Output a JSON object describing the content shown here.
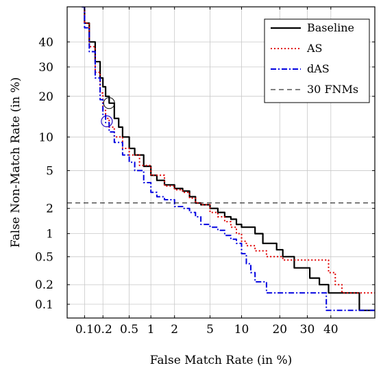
{
  "chart_data": {
    "type": "line",
    "xlabel": "False Match Rate (in %)",
    "ylabel": "False Non-Match Rate (in %)",
    "xscale": "probit",
    "yscale": "probit",
    "xlim": [
      0.05,
      60
    ],
    "ylim": [
      0.06,
      55
    ],
    "x_ticks": [
      0.1,
      0.2,
      0.5,
      1,
      2,
      5,
      10,
      20,
      30,
      40
    ],
    "x_tick_labels": [
      "0.1",
      "0.2",
      "0.5",
      "1",
      "2",
      "5",
      "10",
      "20",
      "30",
      "40"
    ],
    "y_ticks": [
      0.1,
      0.2,
      0.5,
      1,
      2,
      5,
      10,
      20,
      30,
      40
    ],
    "y_tick_labels": [
      "0.1",
      "0.2",
      "0.5",
      "1",
      "2",
      "5",
      "10",
      "20",
      "30",
      "40"
    ],
    "grid": true,
    "legend_position": "top-right",
    "series": [
      {
        "name": "Baseline",
        "color": "#000000",
        "style": "solid",
        "points": [
          [
            0.09,
            55
          ],
          [
            0.1,
            48
          ],
          [
            0.12,
            40
          ],
          [
            0.15,
            32
          ],
          [
            0.18,
            26
          ],
          [
            0.2,
            23
          ],
          [
            0.22,
            20
          ],
          [
            0.25,
            18
          ],
          [
            0.3,
            14
          ],
          [
            0.35,
            12
          ],
          [
            0.4,
            10
          ],
          [
            0.5,
            8
          ],
          [
            0.6,
            7
          ],
          [
            0.8,
            5.5
          ],
          [
            1,
            4.5
          ],
          [
            1.2,
            4
          ],
          [
            1.5,
            3.6
          ],
          [
            2,
            3.3
          ],
          [
            2.5,
            3.1
          ],
          [
            3,
            2.7
          ],
          [
            3.5,
            2.3
          ],
          [
            4,
            2.2
          ],
          [
            5,
            2
          ],
          [
            6,
            1.8
          ],
          [
            7,
            1.6
          ],
          [
            8,
            1.5
          ],
          [
            9,
            1.3
          ],
          [
            10,
            1.2
          ],
          [
            12,
            1.2
          ],
          [
            13,
            1.0
          ],
          [
            14,
            1.0
          ],
          [
            15,
            0.75
          ],
          [
            18,
            0.75
          ],
          [
            19,
            0.62
          ],
          [
            20,
            0.62
          ],
          [
            21,
            0.5
          ],
          [
            24,
            0.5
          ],
          [
            25,
            0.35
          ],
          [
            30,
            0.35
          ],
          [
            31,
            0.25
          ],
          [
            35,
            0.2
          ],
          [
            38,
            0.2
          ],
          [
            39,
            0.15
          ],
          [
            50,
            0.15
          ],
          [
            53,
            0.08
          ],
          [
            60,
            0.08
          ]
        ]
      },
      {
        "name": "AS",
        "color": "#e00000",
        "style": "dotted",
        "points": [
          [
            0.09,
            55
          ],
          [
            0.1,
            48
          ],
          [
            0.12,
            38
          ],
          [
            0.15,
            28
          ],
          [
            0.18,
            21
          ],
          [
            0.2,
            16
          ],
          [
            0.22,
            14
          ],
          [
            0.25,
            12
          ],
          [
            0.3,
            10
          ],
          [
            0.4,
            8
          ],
          [
            0.5,
            7
          ],
          [
            0.7,
            5.6
          ],
          [
            1,
            4.5
          ],
          [
            1.5,
            3.5
          ],
          [
            2,
            3.2
          ],
          [
            2.5,
            3
          ],
          [
            3,
            2.6
          ],
          [
            3.5,
            2.3
          ],
          [
            4,
            2.2
          ],
          [
            5,
            1.8
          ],
          [
            6,
            1.6
          ],
          [
            7,
            1.4
          ],
          [
            8,
            1.2
          ],
          [
            9,
            1.0
          ],
          [
            10,
            0.8
          ],
          [
            11,
            0.7
          ],
          [
            13,
            0.6
          ],
          [
            15,
            0.6
          ],
          [
            16,
            0.5
          ],
          [
            20,
            0.5
          ],
          [
            21,
            0.45
          ],
          [
            38,
            0.45
          ],
          [
            39,
            0.3
          ],
          [
            42,
            0.2
          ],
          [
            45,
            0.15
          ],
          [
            60,
            0.15
          ]
        ]
      },
      {
        "name": "dAS",
        "color": "#0000e0",
        "style": "dashdot",
        "points": [
          [
            0.09,
            55
          ],
          [
            0.1,
            46
          ],
          [
            0.12,
            36
          ],
          [
            0.15,
            26
          ],
          [
            0.18,
            19
          ],
          [
            0.2,
            15
          ],
          [
            0.22,
            13
          ],
          [
            0.25,
            11
          ],
          [
            0.3,
            9
          ],
          [
            0.4,
            7
          ],
          [
            0.5,
            6
          ],
          [
            0.6,
            5
          ],
          [
            0.8,
            3.8
          ],
          [
            1,
            3
          ],
          [
            1.2,
            2.7
          ],
          [
            1.5,
            2.5
          ],
          [
            2,
            2.1
          ],
          [
            2.5,
            2
          ],
          [
            3,
            1.8
          ],
          [
            3.5,
            1.6
          ],
          [
            4,
            1.3
          ],
          [
            5,
            1.2
          ],
          [
            6,
            1.1
          ],
          [
            7,
            0.95
          ],
          [
            8,
            0.85
          ],
          [
            9,
            0.75
          ],
          [
            10,
            0.55
          ],
          [
            11,
            0.4
          ],
          [
            12,
            0.3
          ],
          [
            13,
            0.22
          ],
          [
            15,
            0.22
          ],
          [
            16,
            0.15
          ],
          [
            37,
            0.15
          ],
          [
            38,
            0.08
          ],
          [
            60,
            0.08
          ]
        ]
      },
      {
        "name": "30 FNMs",
        "color": "#000000",
        "style": "dashed",
        "points": [
          [
            0.05,
            2.3
          ],
          [
            60,
            2.3
          ]
        ]
      }
    ],
    "markers": [
      {
        "series": "Baseline",
        "x": 0.25,
        "y": 18,
        "color": "#000000"
      },
      {
        "series": "AS",
        "x": 0.23,
        "y": 13.3,
        "color": "#e00000"
      },
      {
        "series": "dAS",
        "x": 0.23,
        "y": 13.3,
        "color": "#0000e0"
      }
    ]
  }
}
